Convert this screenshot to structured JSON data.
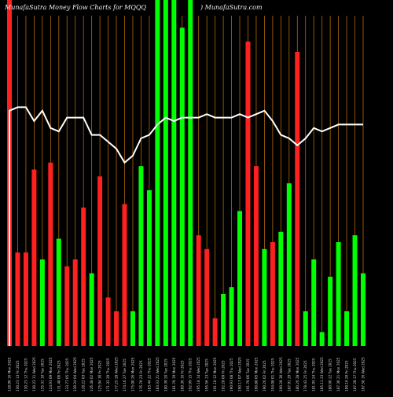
{
  "header": {
    "left_text": "MunafaSutra  Money Flow  Charts for MQQQ",
    "right_text": ") MunafaSutra.com"
  },
  "chart_data": {
    "type": "bar",
    "title": "MunafaSutra  Money Flow  Charts for MQQQ",
    "xlabel": "",
    "ylabel": "",
    "ylim": [
      0,
      100
    ],
    "colors": {
      "up": "#00ff00",
      "down": "#ff2020",
      "line": "#ffffff",
      "grid": "#b06a0a",
      "background": "#000000"
    },
    "grid": true,
    "categories": [
      "128.90 16 Mon 2025",
      "130.23 13 Fri 2025",
      "130.23 12 Thu 2025",
      "130.23 11 Wed 2025",
      "135.31 10 Tue 2025",
      "124.93 09 Mon 2025",
      "131.40 06 Fri 2025",
      "133.77 05 Thu 2025",
      "130.24 04 Wed 2025",
      "128.22 03 Tue 2025",
      "126.48 02 Mon 2025",
      "125.94 30 Fri 2025",
      "171.33 29 Thu 2025",
      "177.25 28 Wed 2025",
      "174.10 27 Tue 2025",
      "175.00 26 Mon 2025",
      "176.70 23 Fri 2025",
      "183.44 22 Thu 2025",
      "183.33 21 Wed 2025",
      "180.39 20 Tue 2025",
      "181.70 19 Mon 2025",
      "189.36 16 Fri 2025",
      "192.99 15 Thu 2025",
      "195.18 14 Wed 2025",
      "195.56 13 Tue 2025",
      "191.10 12 Mon 2025",
      "192.28 09 Fri 2025",
      "190.93 08 Thu 2025",
      "190.17 07 Wed 2025",
      "191.70 06 Tue 2025",
      "190.88 05 Mon 2025",
      "190.26 02 Fri 2025",
      "194.08 01 Thu 2025",
      "190.28 30 Wed 2025",
      "187.91 29 Tue 2025",
      "180.26 28 Mon 2025",
      "178.43 25 Fri 2025",
      "181.95 24 Thu 2025",
      "185.11 23 Wed 2025",
      "180.90 22 Tue 2025",
      "187.30 21 Mon 2025",
      "189.16 20 Fri 2025",
      "187.28 17 Thu 2025",
      "187.50 16 Wed 2025"
    ],
    "series": [
      {
        "values": [
          100,
          27,
          27,
          51,
          25,
          53,
          31,
          23,
          25,
          40,
          21,
          49,
          14,
          10,
          41,
          10,
          52,
          45,
          100,
          100,
          100,
          92,
          100,
          32,
          28,
          8,
          15,
          17,
          39,
          88,
          52,
          28,
          30,
          33,
          47,
          85,
          10,
          25,
          4,
          20,
          30,
          10,
          32,
          21
        ],
        "directions": [
          "down",
          "down",
          "down",
          "down",
          "up",
          "down",
          "up",
          "down",
          "down",
          "down",
          "up",
          "down",
          "down",
          "down",
          "down",
          "up",
          "up",
          "up",
          "up",
          "up",
          "up",
          "up",
          "up",
          "down",
          "down",
          "down",
          "up",
          "up",
          "up",
          "down",
          "down",
          "up",
          "down",
          "up",
          "up",
          "down",
          "up",
          "up",
          "up",
          "up",
          "up",
          "up",
          "up",
          "up"
        ]
      }
    ],
    "line_values": [
      68,
      69,
      69,
      65,
      68,
      63,
      62,
      66,
      66,
      66,
      61,
      61,
      59,
      57,
      53,
      55,
      60,
      61,
      64,
      66,
      65,
      66,
      66,
      66,
      67,
      66,
      66,
      66,
      67,
      66,
      67,
      68,
      65,
      61,
      60,
      58,
      60,
      63,
      62,
      63,
      64,
      64,
      64,
      64
    ]
  }
}
